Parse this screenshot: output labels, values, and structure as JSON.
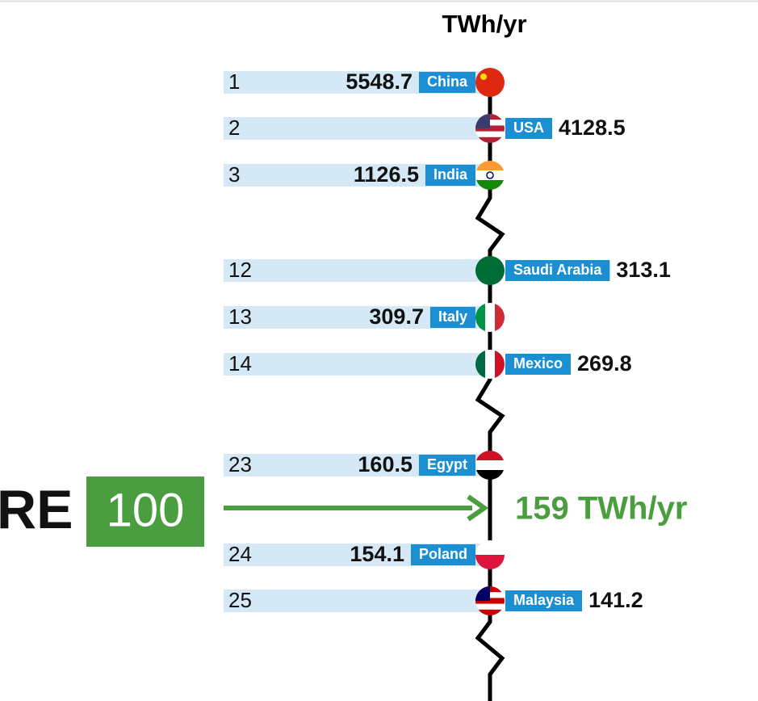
{
  "title": "TWh/yr",
  "rows": [
    {
      "rank": 1,
      "country": "China",
      "value": 5548.7
    },
    {
      "rank": 2,
      "country": "USA",
      "value": 4128.5
    },
    {
      "rank": 3,
      "country": "India",
      "value": 1126.5
    },
    {
      "rank": 12,
      "country": "Saudi Arabia",
      "value": 313.1
    },
    {
      "rank": 13,
      "country": "Italy",
      "value": 309.7
    },
    {
      "rank": 14,
      "country": "Mexico",
      "value": 269.8
    },
    {
      "rank": 23,
      "country": "Egypt",
      "value": 160.5
    },
    {
      "rank": 24,
      "country": "Poland",
      "value": 154.1
    },
    {
      "rank": 25,
      "country": "Malaysia",
      "value": 141.2
    }
  ],
  "threshold": {
    "logo_left": "RE",
    "logo_right": "100",
    "label": "159 TWh/yr"
  }
}
